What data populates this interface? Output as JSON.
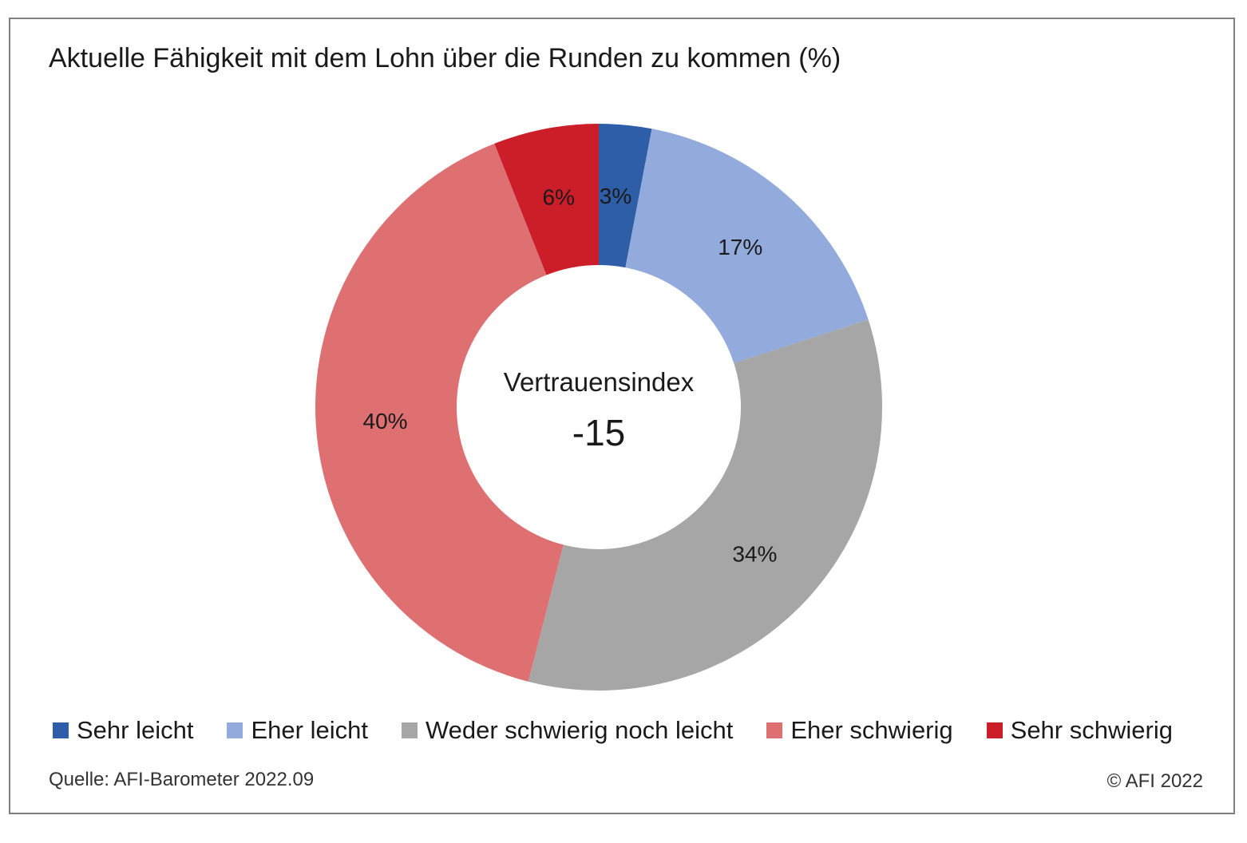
{
  "title": "Aktuelle Fähigkeit mit dem Lohn über die Runden zu kommen (%)",
  "center": {
    "label": "Vertrauensindex",
    "value": "-15"
  },
  "source": "Quelle: AFI-Barometer 2022.09",
  "copyright": "© AFI 2022",
  "chart_data": {
    "type": "pie",
    "variant": "donut",
    "title": "Aktuelle Fähigkeit mit dem Lohn über die Runden zu kommen (%)",
    "categories": [
      "Sehr leicht",
      "Eher leicht",
      "Weder schwierig noch leicht",
      "Eher schwierig",
      "Sehr schwierig"
    ],
    "values": [
      3,
      17,
      34,
      40,
      6
    ],
    "labels": [
      "3%",
      "17%",
      "34%",
      "40%",
      "6%"
    ],
    "colors": [
      "#2e5ea8",
      "#92abdc",
      "#a6a6a6",
      "#de7072",
      "#cc1e28"
    ],
    "legend_position": "bottom"
  }
}
